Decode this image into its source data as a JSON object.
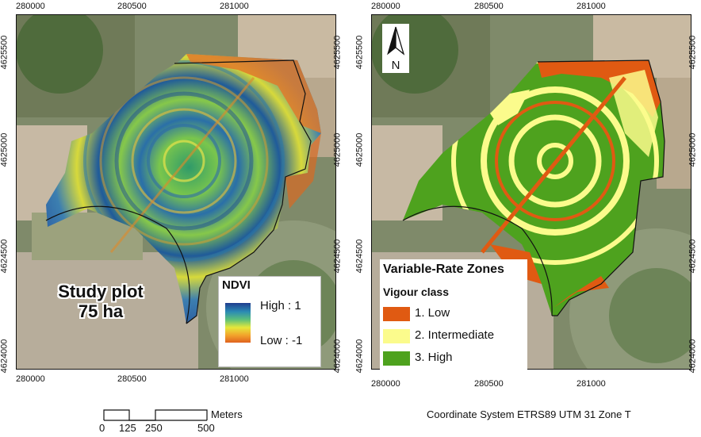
{
  "left_map": {
    "x_ticks": [
      "280000",
      "280500",
      "281000"
    ],
    "y_ticks": [
      "4625500",
      "4625000",
      "4624500",
      "4624000"
    ],
    "study_label_line1": "Study plot",
    "study_label_line2": "75 ha",
    "legend": {
      "title": "NDVI",
      "high": "High : 1",
      "low": "Low : -1"
    }
  },
  "right_map": {
    "x_ticks": [
      "280000",
      "280500",
      "281000"
    ],
    "y_ticks": [
      "4625500",
      "4625000",
      "4624500",
      "4624000"
    ],
    "north_label": "N",
    "legend": {
      "title": "Variable-Rate Zones",
      "subtitle": "Vigour class",
      "items": [
        {
          "label": "1. Low",
          "color": "#e05a12"
        },
        {
          "label": "2. Intermediate",
          "color": "#fbfb8c"
        },
        {
          "label": "3. High",
          "color": "#4ea21e"
        }
      ]
    }
  },
  "scalebar": {
    "unit": "Meters",
    "labels": [
      "0",
      "125",
      "250",
      "500"
    ]
  },
  "coordinate_system": "Coordinate System ETRS89 UTM 31 Zone T",
  "colors": {
    "ndvi_ramp": [
      "#1f3d8f",
      "#2a8bb4",
      "#5cc07a",
      "#e6e83a",
      "#f2a12b",
      "#e0621f"
    ],
    "background_field": "#7f8a6a"
  }
}
